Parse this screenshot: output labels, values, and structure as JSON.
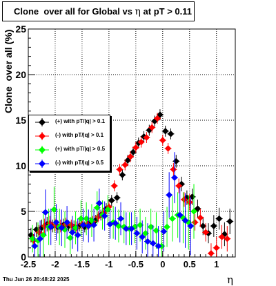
{
  "title": {
    "prefix": "Clone  over all for Global vs ",
    "eta": "η",
    "suffix": " at pT > 0.11"
  },
  "axis_labels": {
    "y": "Clone  over all (%)",
    "x": "η"
  },
  "datestamp": "Thu Jun 26 20:48:22 2025",
  "colors": {
    "pos_pt01": "#000000",
    "neg_pt01": "#ff0000",
    "pos_pt05": "#00ff00",
    "neg_pt05": "#0000ff"
  },
  "legend": [
    {
      "label": "(+) with pT/|q| > 0.1",
      "color": "#000000"
    },
    {
      "label": "(-) with pT/|q| > 0.1",
      "color": "#ff0000"
    },
    {
      "label": "(+) with pT/|q| > 0.5",
      "color": "#00ff00"
    },
    {
      "label": "(-) with pT/|q| > 0.5",
      "color": "#0000ff"
    }
  ],
  "chart_data": {
    "type": "scatter",
    "title": "Clone  over all for Global vs  η at pT > 0.11",
    "xlabel": "η",
    "ylabel": "Clone  over all (%)",
    "xlim": [
      -2.5,
      1.35
    ],
    "ylim": [
      0,
      25
    ],
    "x_ticks": [
      "-2.5",
      "-2",
      "-1.5",
      "-1",
      "-0.5",
      "0",
      "0.5",
      "1"
    ],
    "y_ticks": [
      "0",
      "5",
      "10",
      "15",
      "20",
      "25"
    ],
    "grid": true,
    "legend_position": "middle-left",
    "series": [
      {
        "name": "(+) with pT/|q| > 0.1",
        "color": "#000000",
        "points": [
          [
            -2.45,
            2.4,
            0.8
          ],
          [
            -2.35,
            3.0,
            0.8
          ],
          [
            -2.25,
            3.2,
            0.9
          ],
          [
            -2.15,
            3.6,
            0.8
          ],
          [
            -2.05,
            3.4,
            0.7
          ],
          [
            -1.95,
            3.3,
            0.7
          ],
          [
            -1.85,
            3.5,
            0.7
          ],
          [
            -1.75,
            3.4,
            0.6
          ],
          [
            -1.65,
            3.3,
            0.7
          ],
          [
            -1.55,
            3.4,
            0.6
          ],
          [
            -1.45,
            3.3,
            0.6
          ],
          [
            -1.35,
            3.8,
            0.6
          ],
          [
            -1.25,
            4.0,
            0.6
          ],
          [
            -1.15,
            4.6,
            0.6
          ],
          [
            -1.05,
            5.3,
            0.6
          ],
          [
            -0.95,
            6.2,
            0.6
          ],
          [
            -0.85,
            6.5,
            0.6
          ],
          [
            -0.75,
            9.0,
            0.6
          ],
          [
            -0.65,
            10.6,
            0.6
          ],
          [
            -0.55,
            11.5,
            0.6
          ],
          [
            -0.45,
            12.5,
            0.6
          ],
          [
            -0.35,
            13.2,
            0.6
          ],
          [
            -0.25,
            13.9,
            0.6
          ],
          [
            -0.15,
            14.9,
            0.6
          ],
          [
            -0.05,
            15.6,
            0.6
          ],
          [
            0.05,
            13.8,
            0.6
          ],
          [
            0.15,
            13.5,
            0.6
          ],
          [
            0.25,
            10.5,
            0.7
          ],
          [
            0.35,
            8.0,
            0.8
          ],
          [
            0.45,
            6.5,
            0.8
          ],
          [
            0.55,
            6.6,
            0.9
          ],
          [
            0.65,
            5.3,
            1.0
          ],
          [
            0.75,
            3.4,
            1.0
          ],
          [
            0.85,
            2.6,
            1.1
          ],
          [
            0.95,
            3.4,
            1.2
          ],
          [
            1.05,
            4.2,
            1.2
          ],
          [
            1.15,
            2.5,
            1.3
          ],
          [
            1.25,
            3.9,
            1.4
          ]
        ]
      },
      {
        "name": "(-) with pT/|q| > 0.1",
        "color": "#ff0000",
        "points": [
          [
            -2.4,
            1.8,
            0.7
          ],
          [
            -2.3,
            2.7,
            0.8
          ],
          [
            -2.2,
            3.4,
            0.8
          ],
          [
            -2.1,
            3.7,
            0.8
          ],
          [
            -2.0,
            3.5,
            0.7
          ],
          [
            -1.9,
            3.4,
            0.7
          ],
          [
            -1.8,
            3.6,
            0.7
          ],
          [
            -1.7,
            3.5,
            0.6
          ],
          [
            -1.6,
            3.2,
            0.7
          ],
          [
            -1.5,
            3.6,
            0.6
          ],
          [
            -1.4,
            3.6,
            0.6
          ],
          [
            -1.3,
            3.9,
            0.6
          ],
          [
            -1.2,
            4.4,
            0.6
          ],
          [
            -1.1,
            4.8,
            0.6
          ],
          [
            -1.0,
            5.5,
            0.6
          ],
          [
            -0.9,
            7.8,
            0.6
          ],
          [
            -0.8,
            9.6,
            0.6
          ],
          [
            -0.7,
            10.1,
            0.6
          ],
          [
            -0.6,
            11.0,
            0.6
          ],
          [
            -0.5,
            12.0,
            0.6
          ],
          [
            -0.4,
            12.6,
            0.6
          ],
          [
            -0.3,
            13.1,
            0.6
          ],
          [
            -0.2,
            14.2,
            0.6
          ],
          [
            -0.1,
            15.2,
            0.6
          ],
          [
            0.0,
            12.8,
            0.6
          ],
          [
            0.1,
            11.9,
            0.6
          ],
          [
            0.2,
            9.6,
            0.7
          ],
          [
            0.3,
            7.8,
            0.8
          ],
          [
            0.4,
            6.3,
            0.8
          ],
          [
            0.5,
            6.0,
            0.9
          ],
          [
            0.6,
            3.8,
            0.9
          ],
          [
            0.7,
            4.3,
            1.0
          ],
          [
            0.8,
            2.7,
            1.0
          ],
          [
            0.9,
            0.4,
            1.1
          ],
          [
            1.0,
            1.0,
            1.2
          ],
          [
            1.1,
            2.2,
            1.3
          ],
          [
            1.2,
            2.0,
            1.4
          ]
        ]
      },
      {
        "name": "(+) with pT/|q| > 0.5",
        "color": "#00ff00",
        "points": [
          [
            -2.42,
            2.0,
            1.5
          ],
          [
            -2.32,
            1.8,
            2.0
          ],
          [
            -2.22,
            2.4,
            2.5
          ],
          [
            -2.12,
            3.3,
            2.0
          ],
          [
            -2.02,
            5.2,
            2.5
          ],
          [
            -1.92,
            3.3,
            2.0
          ],
          [
            -1.82,
            3.0,
            2.0
          ],
          [
            -1.72,
            2.1,
            1.8
          ],
          [
            -1.62,
            3.2,
            1.8
          ],
          [
            -1.52,
            4.2,
            2.0
          ],
          [
            -1.42,
            4.2,
            1.8
          ],
          [
            -1.32,
            4.0,
            1.8
          ],
          [
            -1.22,
            5.4,
            1.8
          ],
          [
            -1.12,
            4.6,
            1.6
          ],
          [
            -1.02,
            5.2,
            1.6
          ],
          [
            -0.92,
            3.8,
            1.8
          ],
          [
            -0.82,
            3.4,
            1.8
          ],
          [
            -0.72,
            3.3,
            1.8
          ],
          [
            -0.62,
            3.1,
            1.8
          ],
          [
            -0.52,
            3.3,
            1.8
          ],
          [
            -0.42,
            3.5,
            1.8
          ],
          [
            -0.32,
            2.6,
            1.8
          ],
          [
            -0.22,
            3.3,
            2.0
          ],
          [
            -0.12,
            2.9,
            2.0
          ],
          [
            -0.02,
            1.2,
            2.2
          ],
          [
            0.08,
            3.3,
            2.2
          ],
          [
            0.18,
            4.2,
            2.5
          ],
          [
            0.28,
            4.6,
            2.5
          ],
          [
            0.38,
            4.3,
            2.8
          ],
          [
            0.48,
            3.8,
            3.0
          ],
          [
            0.58,
            5.0,
            3.0
          ]
        ]
      },
      {
        "name": "(-) with pT/|q| > 0.5",
        "color": "#0000ff",
        "points": [
          [
            -2.38,
            1.2,
            1.5
          ],
          [
            -2.28,
            2.0,
            2.0
          ],
          [
            -2.18,
            4.9,
            2.5
          ],
          [
            -2.08,
            3.3,
            2.0
          ],
          [
            -1.98,
            3.8,
            2.0
          ],
          [
            -1.88,
            3.2,
            2.0
          ],
          [
            -1.78,
            3.8,
            1.8
          ],
          [
            -1.68,
            2.7,
            1.8
          ],
          [
            -1.58,
            2.4,
            1.8
          ],
          [
            -1.48,
            3.5,
            1.8
          ],
          [
            -1.38,
            3.4,
            1.8
          ],
          [
            -1.28,
            3.5,
            1.8
          ],
          [
            -1.18,
            5.9,
            1.6
          ],
          [
            -1.08,
            4.5,
            1.6
          ],
          [
            -0.98,
            3.6,
            1.6
          ],
          [
            -0.88,
            3.7,
            1.8
          ],
          [
            -0.78,
            4.2,
            1.8
          ],
          [
            -0.68,
            3.1,
            1.8
          ],
          [
            -0.58,
            3.1,
            1.8
          ],
          [
            -0.48,
            2.6,
            1.8
          ],
          [
            -0.38,
            2.2,
            1.8
          ],
          [
            -0.28,
            1.7,
            2.0
          ],
          [
            -0.18,
            1.5,
            2.0
          ],
          [
            -0.08,
            1.2,
            2.2
          ],
          [
            0.02,
            2.8,
            2.2
          ],
          [
            0.12,
            6.8,
            2.5
          ],
          [
            0.22,
            8.7,
            2.8
          ],
          [
            0.32,
            4.6,
            3.0
          ],
          [
            0.42,
            4.0,
            3.0
          ],
          [
            0.52,
            3.4,
            3.2
          ]
        ]
      }
    ]
  }
}
